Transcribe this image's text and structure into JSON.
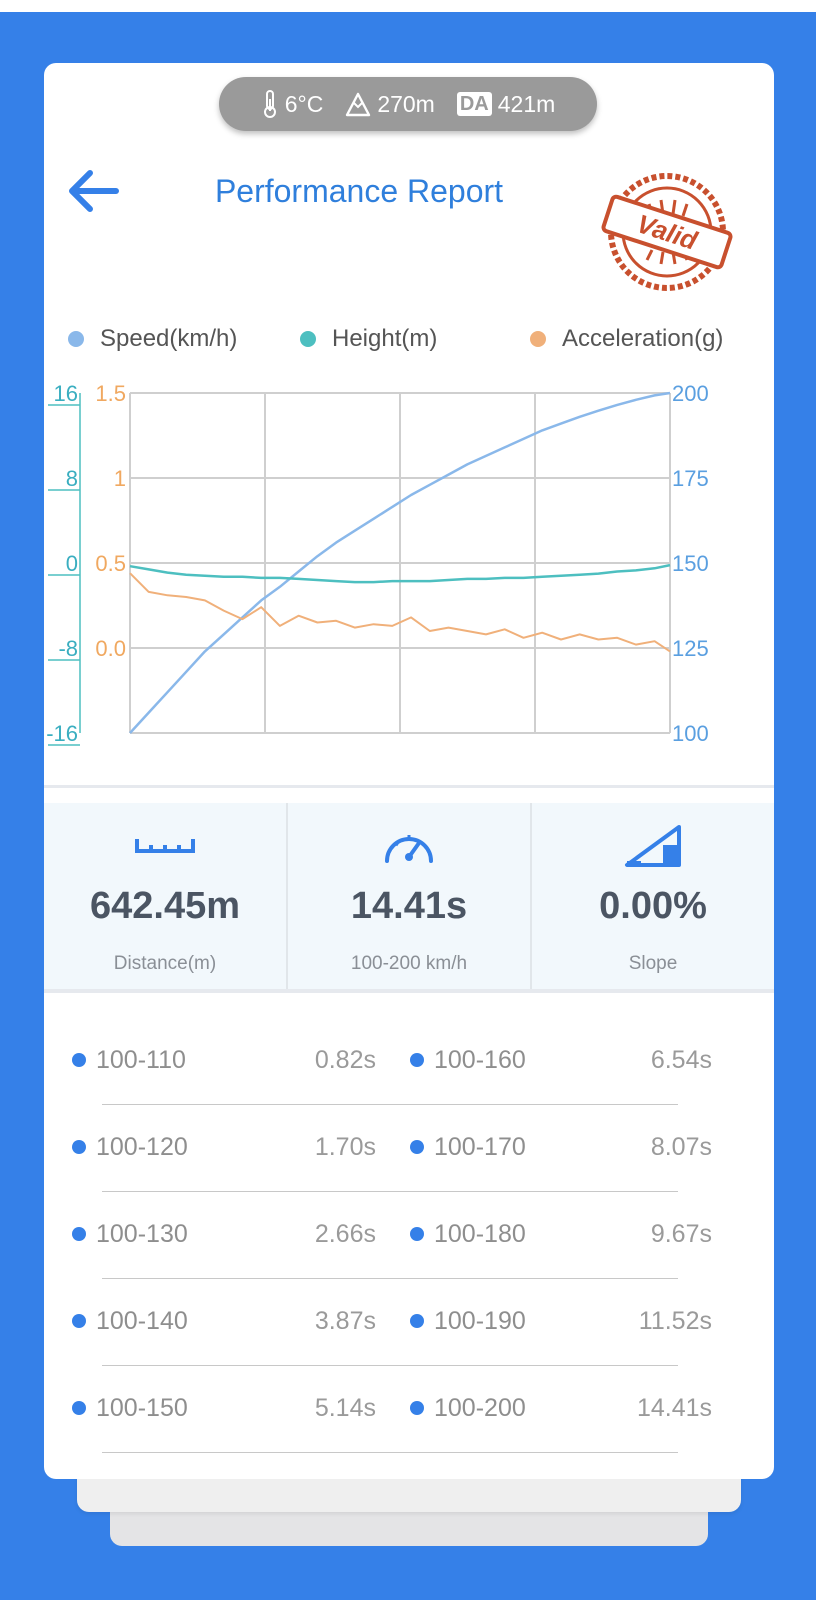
{
  "environment": {
    "temperature": "6°C",
    "altitude": "270m",
    "da_label": "DA",
    "density_altitude": "421m"
  },
  "header": {
    "title": "Performance Report",
    "stamp_text": "Valid"
  },
  "legend": {
    "speed": "Speed(km/h)",
    "height": "Height(m)",
    "acceleration": "Acceleration(g)"
  },
  "colors": {
    "brand_blue": "#3580e8",
    "speed": "#8ab8ea",
    "height": "#4dbfc0",
    "acceleration": "#f0b07a",
    "stamp": "#c8502e"
  },
  "chart_data": {
    "type": "line",
    "grid": true,
    "legend_position": "top",
    "x": [
      0,
      0.5,
      1,
      1.5,
      2,
      2.5,
      3,
      3.5,
      4,
      4.5,
      5,
      5.5,
      6,
      6.5,
      7,
      7.5,
      8,
      8.5,
      9,
      9.5,
      10,
      10.5,
      11,
      11.5,
      12,
      12.5,
      13,
      13.5,
      14,
      14.41
    ],
    "axes": {
      "height": {
        "ticks": [
          "16",
          "8",
          "0",
          "-8",
          "-16"
        ],
        "range": [
          -16,
          16
        ]
      },
      "acceleration": {
        "ticks": [
          "1.5",
          "1",
          "0.5",
          "0.0"
        ],
        "range": [
          -0.5,
          1.5
        ]
      },
      "speed": {
        "ticks": [
          "200",
          "175",
          "150",
          "125",
          "100"
        ],
        "range": [
          100,
          200
        ]
      }
    },
    "series": [
      {
        "name": "Speed(km/h)",
        "axis": "speed",
        "values": [
          100,
          106,
          112,
          118,
          124,
          129,
          134,
          139,
          143,
          147.5,
          152,
          156,
          159.5,
          163,
          166.5,
          170,
          173,
          176,
          179,
          181.5,
          184,
          186.5,
          189,
          191,
          193,
          194.8,
          196.5,
          198,
          199.3,
          200
        ]
      },
      {
        "name": "Height(m)",
        "axis": "height",
        "values": [
          -0.3,
          -0.6,
          -0.9,
          -1.1,
          -1.2,
          -1.3,
          -1.3,
          -1.4,
          -1.4,
          -1.5,
          -1.6,
          -1.7,
          -1.8,
          -1.8,
          -1.7,
          -1.7,
          -1.7,
          -1.6,
          -1.5,
          -1.5,
          -1.4,
          -1.4,
          -1.3,
          -1.2,
          -1.1,
          -1.0,
          -0.8,
          -0.7,
          -0.5,
          -0.2
        ]
      },
      {
        "name": "Acceleration(g)",
        "axis": "acceleration",
        "values": [
          0.44,
          0.33,
          0.31,
          0.3,
          0.28,
          0.22,
          0.17,
          0.24,
          0.13,
          0.19,
          0.15,
          0.16,
          0.12,
          0.14,
          0.13,
          0.18,
          0.1,
          0.12,
          0.1,
          0.08,
          0.11,
          0.06,
          0.09,
          0.05,
          0.08,
          0.05,
          0.06,
          0.02,
          0.04,
          -0.02
        ]
      }
    ]
  },
  "stats": [
    {
      "value": "642.45m",
      "label": "Distance(m)",
      "icon": "ruler-icon"
    },
    {
      "value": "14.41s",
      "label": "100-200 km/h",
      "icon": "speedometer-icon"
    },
    {
      "value": "0.00%",
      "label": "Slope",
      "icon": "slope-icon"
    }
  ],
  "splits": [
    {
      "left_range": "100-110",
      "left_time": "0.82s",
      "right_range": "100-160",
      "right_time": "6.54s"
    },
    {
      "left_range": "100-120",
      "left_time": "1.70s",
      "right_range": "100-170",
      "right_time": "8.07s"
    },
    {
      "left_range": "100-130",
      "left_time": "2.66s",
      "right_range": "100-180",
      "right_time": "9.67s"
    },
    {
      "left_range": "100-140",
      "left_time": "3.87s",
      "right_range": "100-190",
      "right_time": "11.52s"
    },
    {
      "left_range": "100-150",
      "left_time": "5.14s",
      "right_range": "100-200",
      "right_time": "14.41s"
    }
  ]
}
